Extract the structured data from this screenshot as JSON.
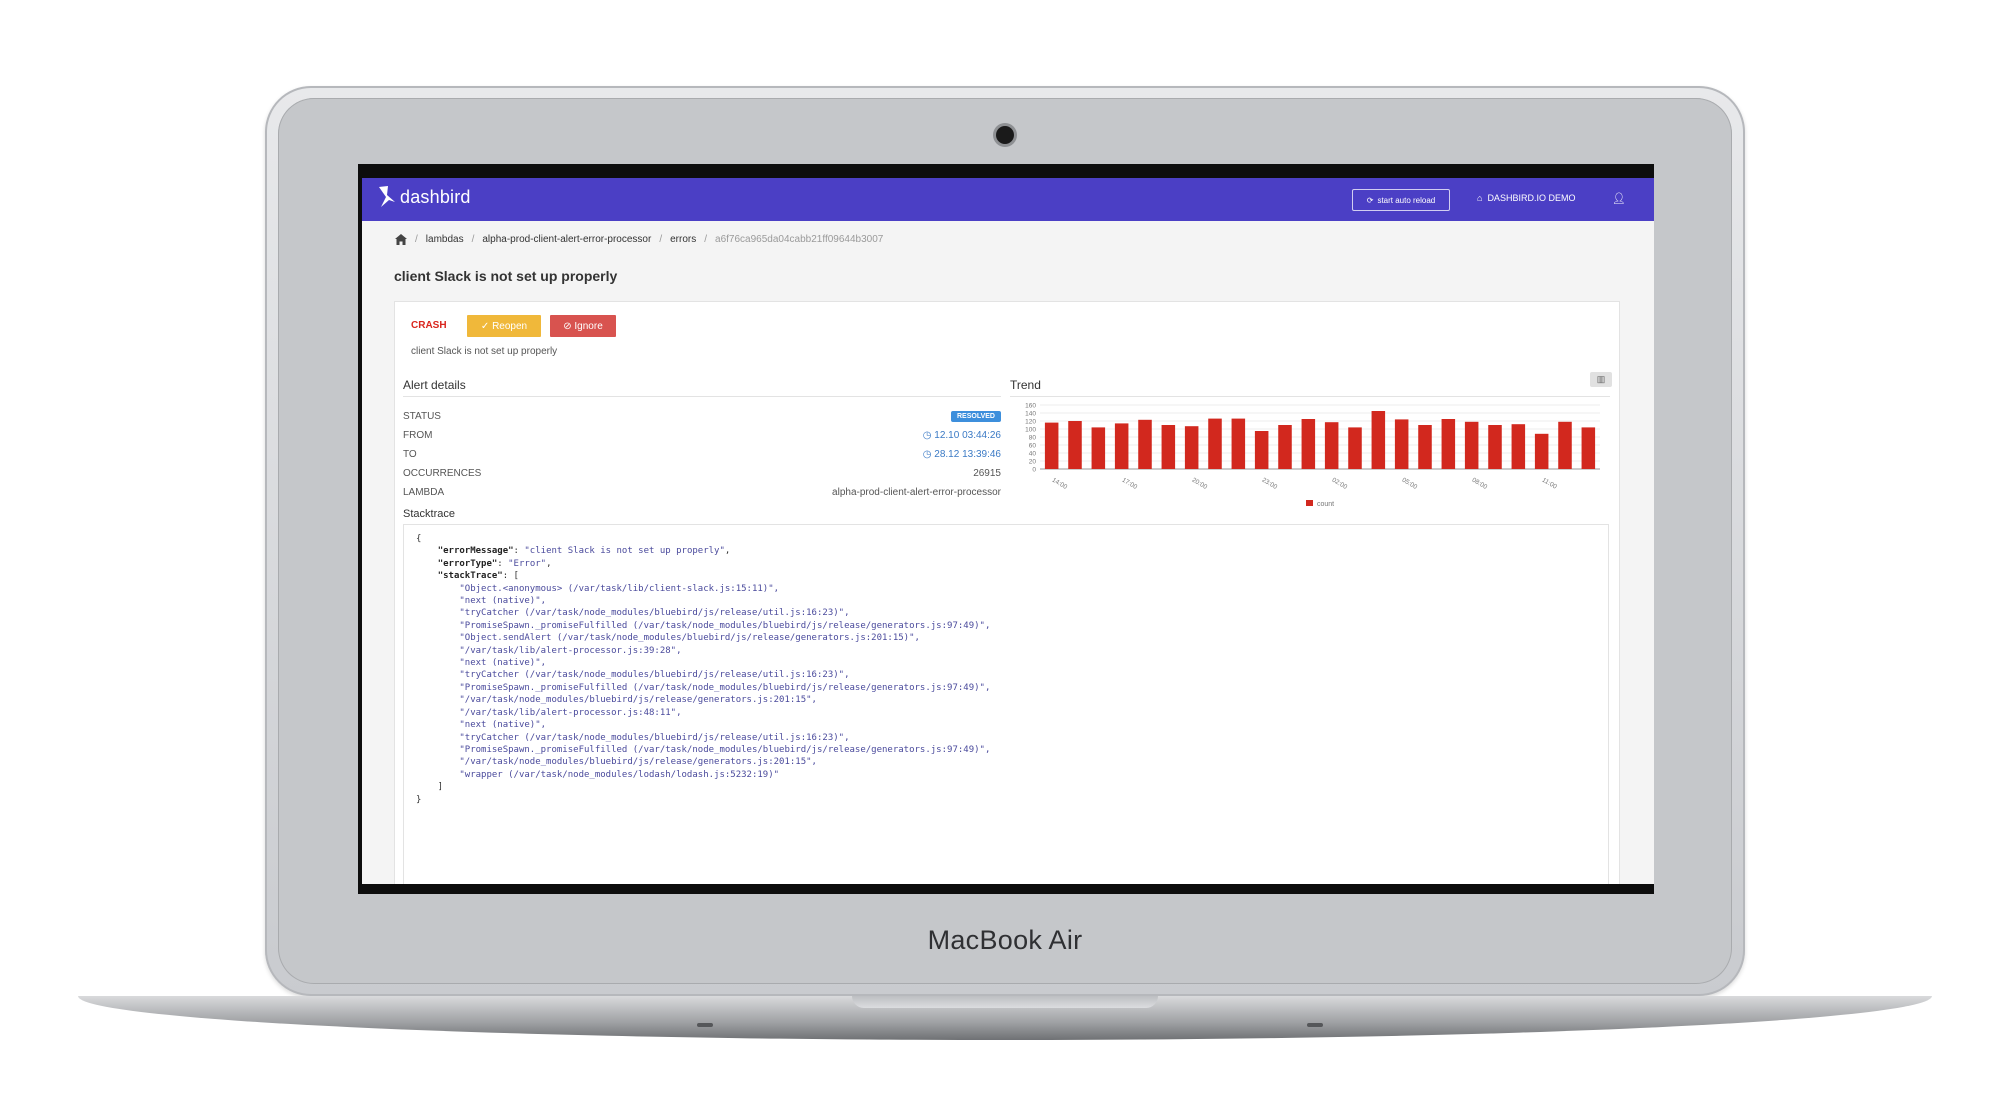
{
  "device": {
    "brand": "MacBook Air"
  },
  "app": {
    "logo": "dashbird",
    "reload_label": "start auto reload",
    "account_label": "DASHBIRD.IO DEMO"
  },
  "breadcrumb": {
    "items": [
      "lambdas",
      "alpha-prod-client-alert-error-processor",
      "errors"
    ],
    "current": "a6f76ca965da04cabb21ff09644b3007"
  },
  "page": {
    "title": "client Slack is not set up properly"
  },
  "crash": {
    "type": "CRASH",
    "reopen_label": "Reopen",
    "ignore_label": "Ignore",
    "message": "client Slack is not set up properly"
  },
  "alert_details": {
    "title": "Alert details",
    "rows": [
      {
        "label": "STATUS",
        "value": "RESOLVED"
      },
      {
        "label": "FROM",
        "value": "12.10 03:44:26"
      },
      {
        "label": "TO",
        "value": "28.12 13:39:46"
      },
      {
        "label": "OCCURRENCES",
        "value": "26915"
      },
      {
        "label": "LAMBDA",
        "value": "alpha-prod-client-alert-error-processor"
      }
    ]
  },
  "trend": {
    "title": "Trend"
  },
  "chart_data": {
    "type": "bar",
    "title": "",
    "categories": [
      "14:00",
      "15:00",
      "16:00",
      "17:00",
      "18:00",
      "19:00",
      "20:00",
      "21:00",
      "22:00",
      "23:00",
      "00:00",
      "01:00",
      "02:00",
      "03:00",
      "04:00",
      "05:00",
      "06:00",
      "07:00",
      "08:00",
      "09:00",
      "10:00",
      "11:00",
      "12:00",
      "13:00"
    ],
    "x_tick_labels": [
      "14:00",
      "17:00",
      "20:00",
      "23:00",
      "02:00",
      "05:00",
      "08:00",
      "11:00"
    ],
    "series": [
      {
        "name": "count",
        "values": [
          116,
          120,
          104,
          114,
          123,
          110,
          107,
          126,
          126,
          95,
          110,
          125,
          117,
          104,
          145,
          124,
          110,
          125,
          118,
          110,
          112,
          88,
          118,
          104
        ]
      }
    ],
    "ylim": [
      0,
      160
    ],
    "y_ticks": [
      0,
      20,
      40,
      60,
      80,
      100,
      120,
      140,
      160
    ],
    "color": "#d2281e",
    "legend": "bottom-center"
  },
  "stacktrace": {
    "title": "Stacktrace",
    "error_message_key": "\"errorMessage\"",
    "error_message": "\"client Slack is not set up properly\"",
    "error_type_key": "\"errorType\"",
    "error_type": "\"Error\"",
    "stack_key": "\"stackTrace\"",
    "frames": [
      "\"Object.<anonymous> (/var/task/lib/client-slack.js:15:11)\",",
      "\"next (native)\",",
      "\"tryCatcher (/var/task/node_modules/bluebird/js/release/util.js:16:23)\",",
      "\"PromiseSpawn._promiseFulfilled (/var/task/node_modules/bluebird/js/release/generators.js:97:49)\",",
      "\"Object.sendAlert (/var/task/node_modules/bluebird/js/release/generators.js:201:15)\",",
      "\"/var/task/lib/alert-processor.js:39:28\",",
      "\"next (native)\",",
      "\"tryCatcher (/var/task/node_modules/bluebird/js/release/util.js:16:23)\",",
      "\"PromiseSpawn._promiseFulfilled (/var/task/node_modules/bluebird/js/release/generators.js:97:49)\",",
      "\"/var/task/node_modules/bluebird/js/release/generators.js:201:15\",",
      "\"/var/task/lib/alert-processor.js:48:11\",",
      "\"next (native)\",",
      "\"tryCatcher (/var/task/node_modules/bluebird/js/release/util.js:16:23)\",",
      "\"PromiseSpawn._promiseFulfilled (/var/task/node_modules/bluebird/js/release/generators.js:97:49)\",",
      "\"/var/task/node_modules/bluebird/js/release/generators.js:201:15\",",
      "\"wrapper (/var/task/node_modules/lodash/lodash.js:5232:19)\""
    ]
  }
}
